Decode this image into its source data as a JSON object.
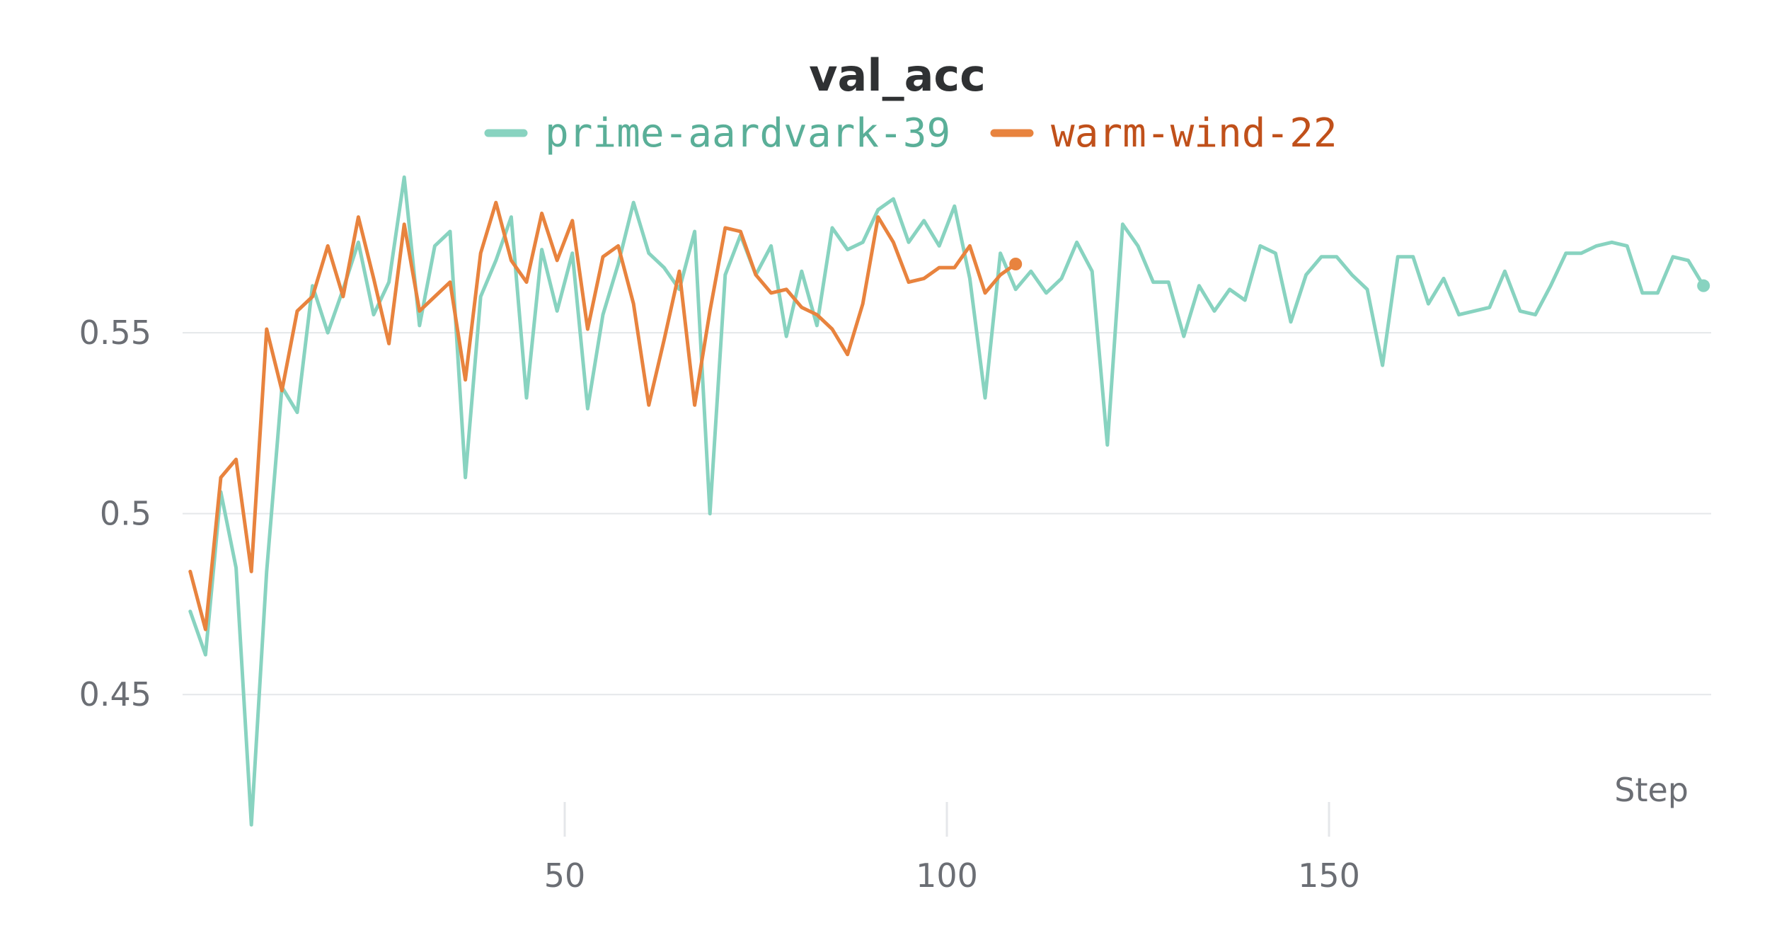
{
  "chart_data": {
    "type": "line",
    "title": "val_acc",
    "xlabel": "Step",
    "ylabel": "",
    "xlim": [
      0,
      200
    ],
    "ylim": [
      0.416,
      0.596
    ],
    "grid": true,
    "legend_position": "top-center",
    "xticks": [
      50,
      100,
      150
    ],
    "xtick_labels": [
      "50",
      "100",
      "150"
    ],
    "yticks": [
      0.45,
      0.5,
      0.55
    ],
    "ytick_labels": [
      "0.45",
      "0.5",
      "0.55"
    ],
    "colors": {
      "background": "#ffffff",
      "grid": "#e5e7ea",
      "title": "#2f3133",
      "tick_text": "#6b6e74"
    },
    "series": [
      {
        "name": "prime-aardvark-39",
        "color": "#88d3c0",
        "label_color": "#5aaf98",
        "x": [
          1,
          3,
          5,
          7,
          9,
          11,
          13,
          15,
          17,
          19,
          21,
          23,
          25,
          27,
          29,
          31,
          33,
          35,
          37,
          39,
          41,
          43,
          45,
          47,
          49,
          51,
          53,
          55,
          57,
          59,
          61,
          63,
          65,
          67,
          69,
          71,
          73,
          75,
          77,
          79,
          81,
          83,
          85,
          87,
          89,
          91,
          93,
          95,
          97,
          99,
          101,
          103,
          105,
          107,
          109,
          111,
          113,
          115,
          117,
          119,
          121,
          123,
          125,
          127,
          129,
          131,
          133,
          135,
          137,
          139,
          141,
          143,
          145,
          147,
          149,
          151,
          153,
          155,
          157,
          159,
          161,
          163,
          165,
          167,
          169,
          171,
          173,
          175,
          177,
          179,
          181,
          183,
          185,
          187,
          189,
          191,
          193,
          195,
          197,
          199
        ],
        "y": [
          0.473,
          0.461,
          0.506,
          0.485,
          0.414,
          0.484,
          0.535,
          0.528,
          0.563,
          0.55,
          0.562,
          0.575,
          0.555,
          0.564,
          0.593,
          0.552,
          0.574,
          0.578,
          0.51,
          0.56,
          0.57,
          0.582,
          0.532,
          0.573,
          0.556,
          0.572,
          0.529,
          0.555,
          0.569,
          0.586,
          0.572,
          0.568,
          0.562,
          0.578,
          0.5,
          0.566,
          0.577,
          0.566,
          0.574,
          0.549,
          0.567,
          0.552,
          0.579,
          0.573,
          0.575,
          0.584,
          0.587,
          0.575,
          0.581,
          0.574,
          0.585,
          0.565,
          0.532,
          0.572,
          0.562,
          0.567,
          0.561,
          0.565,
          0.575,
          0.567,
          0.519,
          0.58,
          0.574,
          0.564,
          0.564,
          0.549,
          0.563,
          0.556,
          0.562,
          0.559,
          0.574,
          0.572,
          0.553,
          0.566,
          0.571,
          0.571,
          0.566,
          0.562,
          0.541,
          0.571,
          0.571,
          0.558,
          0.565,
          0.555,
          0.556,
          0.557,
          0.567,
          0.556,
          0.555,
          0.563,
          0.572,
          0.572,
          0.574,
          0.575,
          0.574,
          0.561,
          0.561,
          0.571,
          0.57,
          0.563
        ]
      },
      {
        "name": "warm-wind-22",
        "color": "#e8833e",
        "label_color": "#c0501a",
        "x": [
          1,
          3,
          5,
          7,
          9,
          11,
          13,
          15,
          17,
          19,
          21,
          23,
          25,
          27,
          29,
          31,
          33,
          35,
          37,
          39,
          41,
          43,
          45,
          47,
          49,
          51,
          53,
          55,
          57,
          59,
          61,
          63,
          65,
          67,
          69,
          71,
          73,
          75,
          77,
          79,
          81,
          83,
          85,
          87,
          89,
          91,
          93,
          95,
          97,
          99,
          101,
          103,
          105,
          107,
          109
        ],
        "y": [
          0.484,
          0.468,
          0.51,
          0.515,
          0.484,
          0.551,
          0.534,
          0.556,
          0.56,
          0.574,
          0.56,
          0.582,
          0.565,
          0.547,
          0.58,
          0.556,
          0.56,
          0.564,
          0.537,
          0.572,
          0.586,
          0.57,
          0.564,
          0.583,
          0.57,
          0.581,
          0.551,
          0.571,
          0.574,
          0.558,
          0.53,
          0.548,
          0.567,
          0.53,
          0.556,
          0.579,
          0.578,
          0.566,
          0.561,
          0.562,
          0.557,
          0.555,
          0.551,
          0.544,
          0.558,
          0.582,
          0.575,
          0.564,
          0.565,
          0.568,
          0.568,
          0.574,
          0.561,
          0.566,
          0.569
        ]
      }
    ]
  }
}
